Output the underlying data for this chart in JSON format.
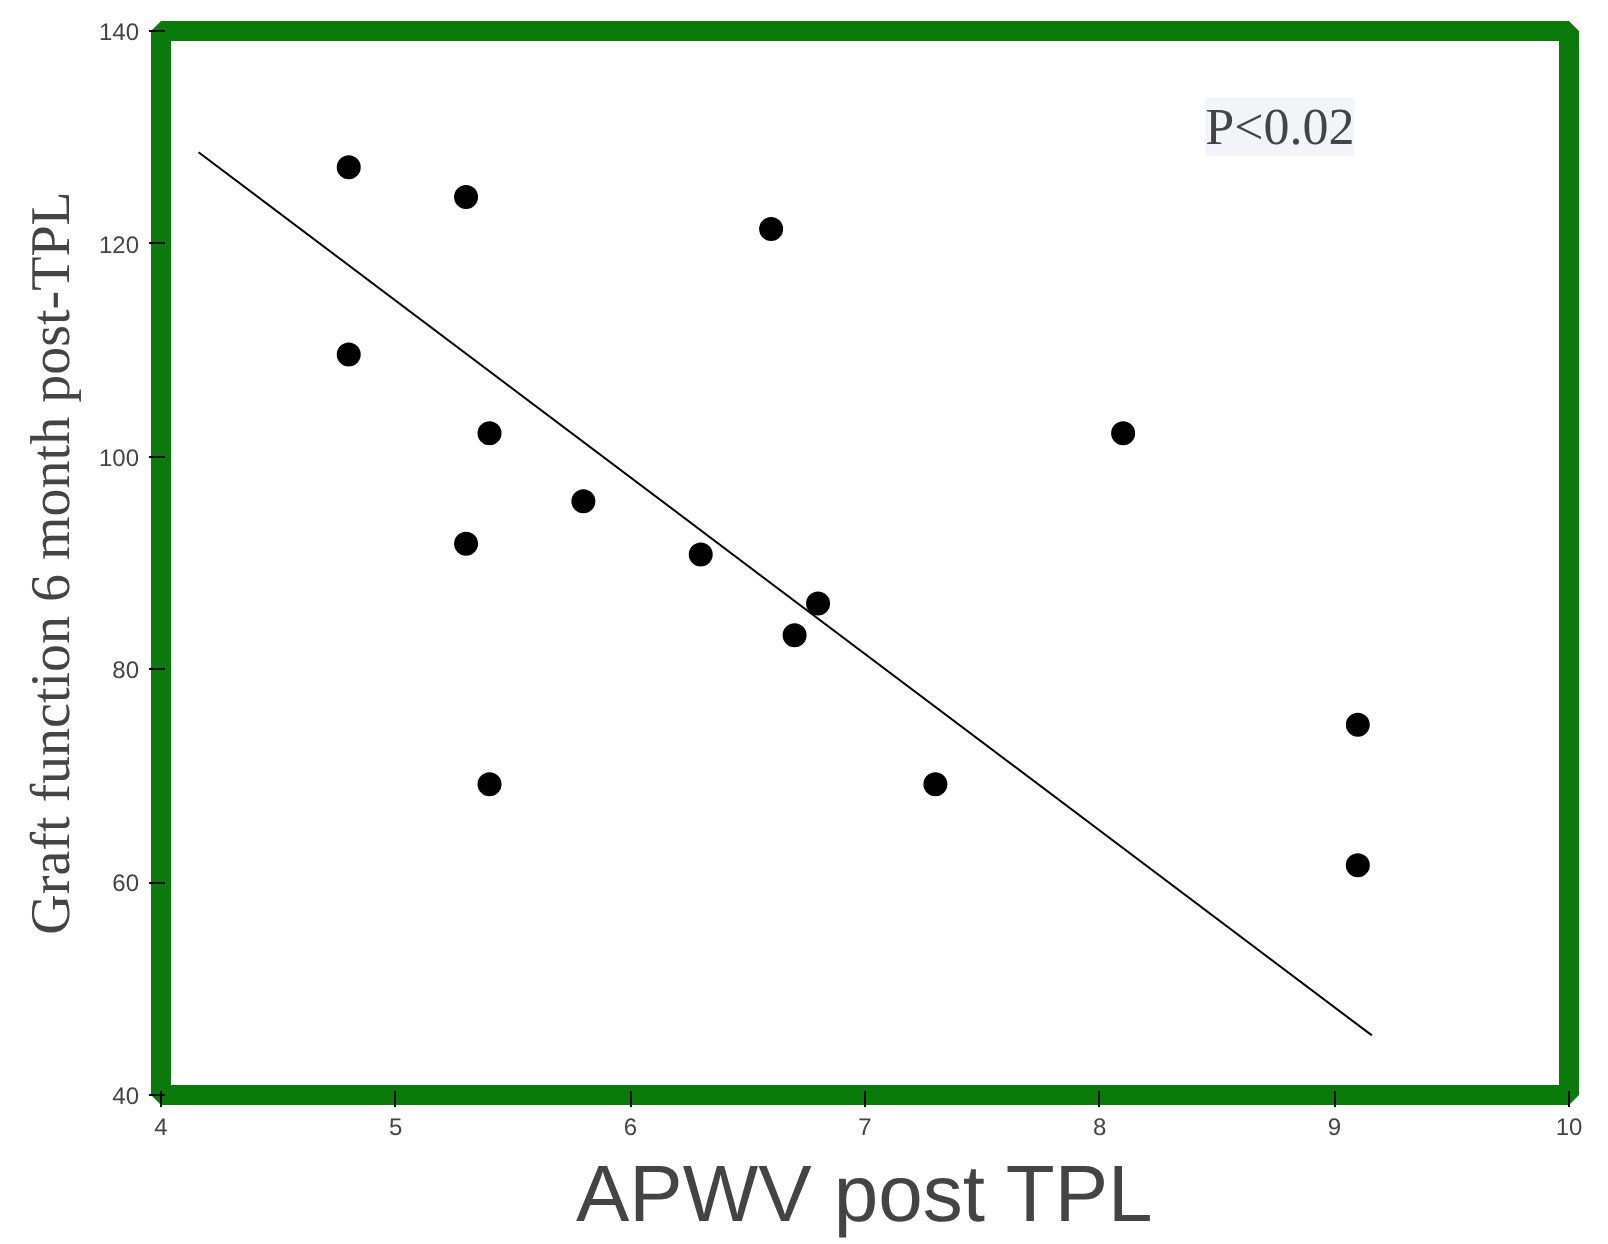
{
  "chart_data": {
    "type": "scatter",
    "xlabel": "APWV post TPL",
    "ylabel": "Graft function 6 month post-TPL",
    "x": [
      4.8,
      4.8,
      5.3,
      5.3,
      5.4,
      5.4,
      5.8,
      6.3,
      6.6,
      6.7,
      6.8,
      7.3,
      8.1,
      9.1,
      9.1
    ],
    "series": [
      {
        "color": "#000000",
        "values": [
          127.2,
          109.6,
          124.4,
          91.8,
          102.2,
          69.2,
          95.8,
          90.8,
          121.4,
          83.2,
          86.2,
          69.2,
          102.2,
          74.8,
          61.6
        ]
      },
      {
        "type": "line",
        "marker": "none",
        "color": "#000000",
        "x": [
          4.16,
          9.16
        ],
        "values": [
          128.6,
          45.6
        ]
      }
    ],
    "xlim": [
      4,
      10
    ],
    "ylim": [
      40,
      140
    ],
    "xticks": [
      4,
      5,
      6,
      7,
      8,
      9,
      10
    ],
    "yticks": [
      40,
      60,
      80,
      100,
      120,
      140
    ],
    "marker": "circle",
    "grid": false,
    "annotations": [
      "P<0.02"
    ]
  }
}
